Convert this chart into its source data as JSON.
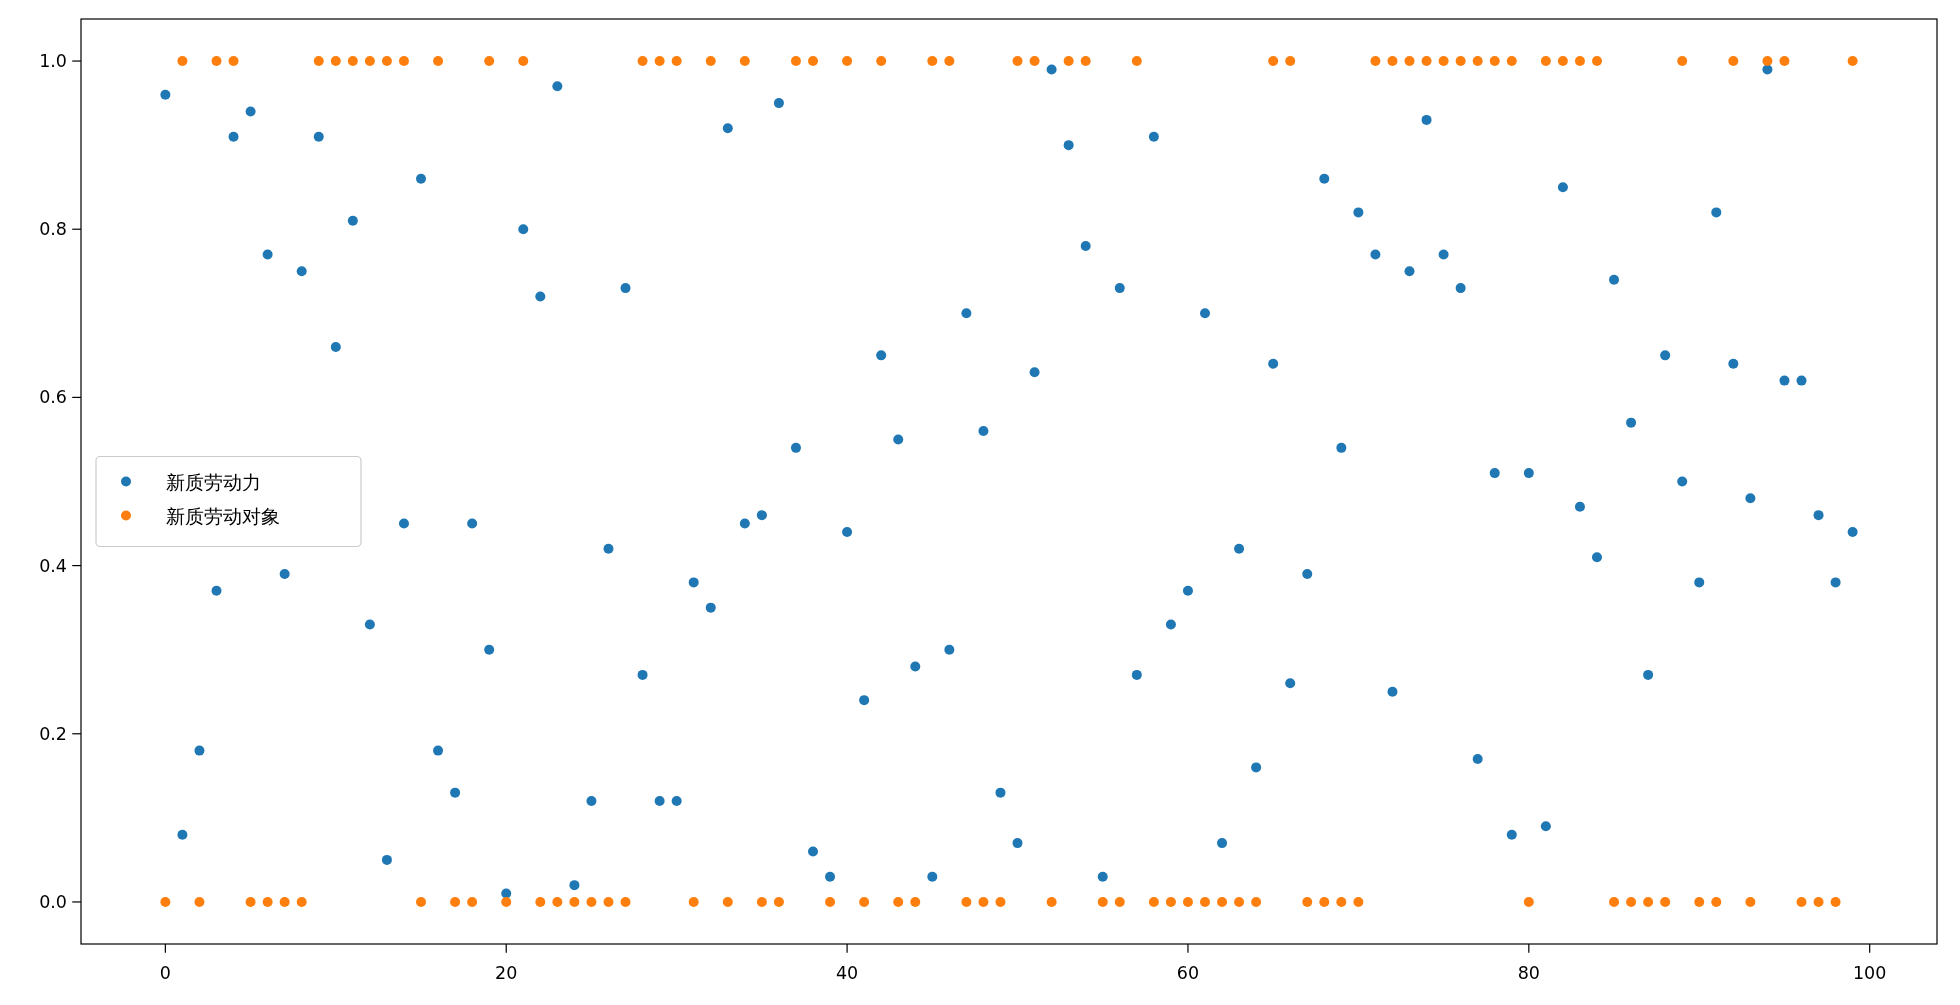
{
  "chart_data": {
    "type": "scatter",
    "marker": "circle",
    "legend": "center left",
    "grid": false,
    "x": [
      0,
      1,
      2,
      3,
      4,
      5,
      6,
      7,
      8,
      9,
      10,
      11,
      12,
      13,
      14,
      15,
      16,
      17,
      18,
      19,
      20,
      21,
      22,
      23,
      24,
      25,
      26,
      27,
      28,
      29,
      30,
      31,
      32,
      33,
      34,
      35,
      36,
      37,
      38,
      39,
      40,
      41,
      42,
      43,
      44,
      45,
      46,
      47,
      48,
      49,
      50,
      51,
      52,
      53,
      54,
      55,
      56,
      57,
      58,
      59,
      60,
      61,
      62,
      63,
      64,
      65,
      66,
      67,
      68,
      69,
      70,
      71,
      72,
      73,
      74,
      75,
      76,
      77,
      78,
      79,
      80,
      81,
      82,
      83,
      84,
      85,
      86,
      87,
      88,
      89,
      90,
      91,
      92,
      93,
      94,
      95,
      96,
      97,
      98,
      99
    ],
    "xlim": [
      -4.95,
      103.95
    ],
    "xticks": [
      0,
      20,
      40,
      60,
      80,
      100
    ],
    "ylim": [
      -0.05,
      1.05
    ],
    "yticks": [
      {
        "value": 0,
        "label": "0.0"
      },
      {
        "value": 0.2,
        "label": "0.2"
      },
      {
        "value": 0.4,
        "label": "0.4"
      },
      {
        "value": 0.6,
        "label": "0.6"
      },
      {
        "value": 0.8,
        "label": "0.8"
      },
      {
        "value": 1,
        "label": "1.0"
      }
    ],
    "series": [
      {
        "name": "新质劳动力",
        "color": "#1f77b4",
        "values": [
          0.96,
          0.08,
          0.18,
          0.37,
          0.91,
          0.94,
          0.77,
          0.39,
          0.75,
          0.91,
          0.66,
          0.81,
          0.33,
          0.05,
          0.45,
          0.86,
          0.18,
          0.13,
          0.45,
          0.3,
          0.01,
          0.8,
          0.72,
          0.97,
          0.02,
          0.12,
          0.42,
          0.73,
          0.27,
          0.12,
          0.12,
          0.38,
          0.35,
          0.92,
          0.45,
          0.46,
          0.95,
          0.54,
          0.06,
          0.03,
          0.44,
          0.24,
          0.65,
          0.55,
          0.28,
          0.03,
          0.3,
          0.7,
          0.56,
          0.13,
          0.07,
          0.63,
          0.99,
          0.9,
          0.78,
          0.03,
          0.73,
          0.27,
          0.91,
          0.33,
          0.37,
          0.7,
          0.07,
          0.42,
          0.16,
          0.64,
          0.26,
          0.39,
          0.86,
          0.54,
          0.82,
          0.77,
          0.25,
          0.75,
          0.93,
          0.77,
          0.73,
          0.17,
          0.51,
          0.08,
          0.51,
          0.09,
          0.85,
          0.47,
          0.41,
          0.74,
          0.57,
          0.27,
          0.65,
          0.5,
          0.38,
          0.82,
          0.64,
          0.48,
          0.99,
          0.62,
          0.62,
          0.46,
          0.38,
          0.44
        ]
      },
      {
        "name": "新质劳动对象",
        "color": "#ff7f0e",
        "values": [
          0,
          1,
          0,
          1,
          1,
          0,
          0,
          0,
          0,
          1,
          1,
          1,
          1,
          1,
          1,
          0,
          1,
          0,
          0,
          1,
          0,
          1,
          0,
          0,
          0,
          0,
          0,
          0,
          1,
          1,
          1,
          0,
          1,
          0,
          1,
          0,
          0,
          1,
          1,
          0,
          1,
          0,
          1,
          0,
          0,
          1,
          1,
          0,
          0,
          0,
          1,
          1,
          0,
          1,
          1,
          0,
          0,
          1,
          0,
          0,
          0,
          0,
          0,
          0,
          0,
          1,
          1,
          0,
          0,
          0,
          0,
          1,
          1,
          1,
          1,
          1,
          1,
          1,
          1,
          1,
          0,
          1,
          1,
          1,
          1,
          0,
          0,
          0,
          0,
          1,
          0,
          0,
          1,
          0,
          1,
          1,
          0,
          0,
          0,
          1
        ]
      }
    ]
  }
}
